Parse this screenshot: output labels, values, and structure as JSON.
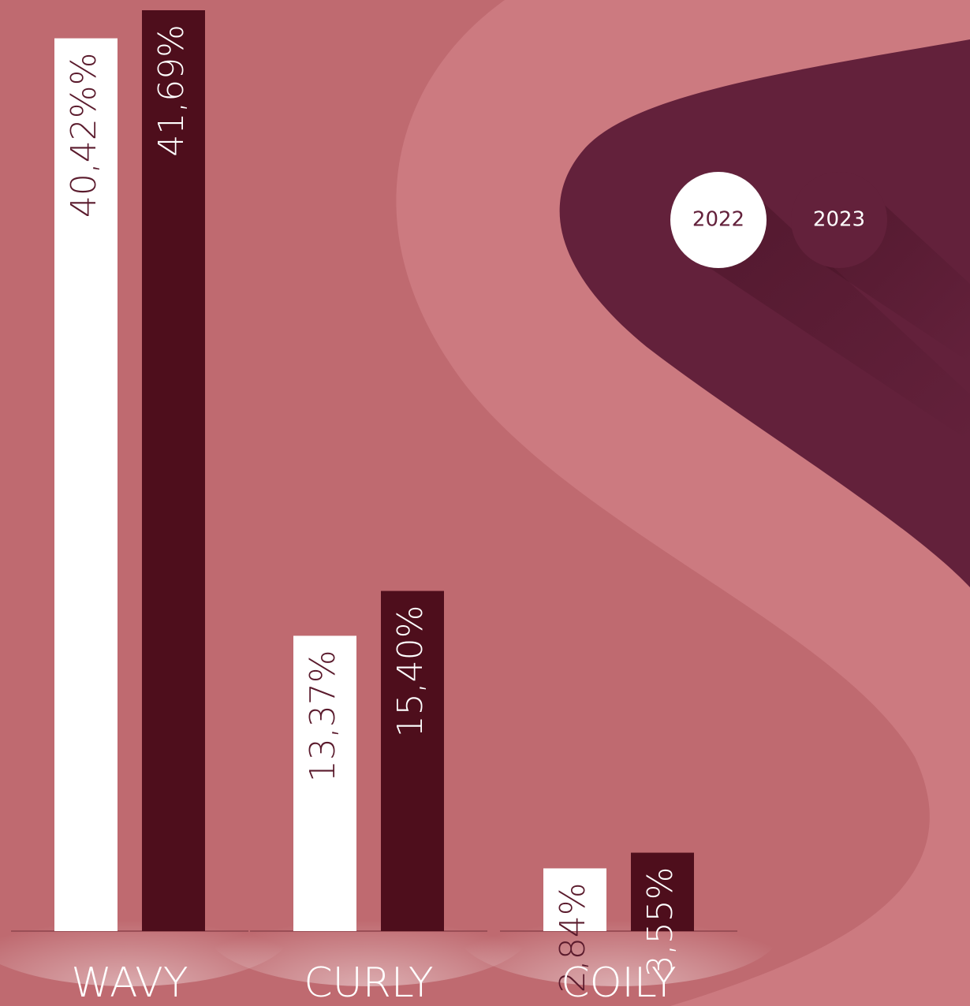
{
  "chart_data": {
    "type": "bar",
    "categories": [
      "WAVY",
      "CURLY",
      "COILY"
    ],
    "series": [
      {
        "name": "2022",
        "color": "#ffffff",
        "values": [
          40.42,
          13.37,
          2.84
        ],
        "value_labels": [
          "40,42%%",
          "13,37%",
          "2,84%"
        ]
      },
      {
        "name": "2023",
        "color": "#4e0e1c",
        "values": [
          41.69,
          15.4,
          3.55
        ],
        "value_labels": [
          "41,69%",
          "15,40%",
          "3,55%"
        ]
      }
    ]
  }
}
